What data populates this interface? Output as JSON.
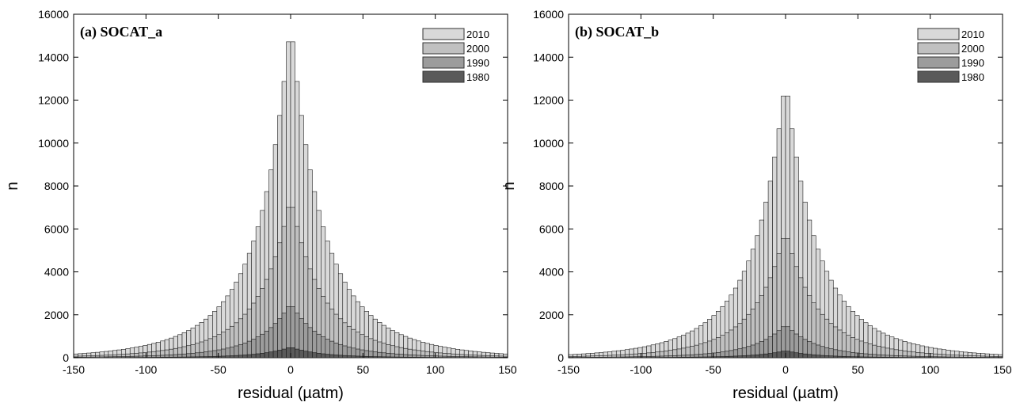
{
  "chart_data": [
    {
      "type": "bar",
      "title": "(a) SOCAT_a",
      "xlabel": "residual (µatm)",
      "ylabel": "n",
      "xlim": [
        -150,
        150
      ],
      "ylim": [
        0,
        16000
      ],
      "xticks": [
        "-150",
        "-100",
        "-50",
        "0",
        "50",
        "100",
        "150"
      ],
      "yticks": [
        "0",
        "2000",
        "4000",
        "6000",
        "8000",
        "10000",
        "12000",
        "14000",
        "16000"
      ],
      "bin_width": 3,
      "legend_position": "top-right",
      "series": [
        {
          "name": "2010",
          "color": "#d9d9d9",
          "peak": 15750,
          "w1": 17,
          "w2": 42
        },
        {
          "name": "2000",
          "color": "#c0c0c0",
          "peak": 7500,
          "w1": 17,
          "w2": 40
        },
        {
          "name": "1990",
          "color": "#9c9c9c",
          "peak": 2550,
          "w1": 17,
          "w2": 40
        },
        {
          "name": "1980",
          "color": "#5a5a5a",
          "peak": 500,
          "w1": 16,
          "w2": 40
        }
      ]
    },
    {
      "type": "bar",
      "title": "(b) SOCAT_b",
      "xlabel": "residual (µatm)",
      "ylabel": "n",
      "xlim": [
        -150,
        150
      ],
      "ylim": [
        0,
        16000
      ],
      "xticks": [
        "-150",
        "-100",
        "-50",
        "0",
        "50",
        "100",
        "150"
      ],
      "yticks": [
        "0",
        "2000",
        "4000",
        "6000",
        "8000",
        "10000",
        "12000",
        "14000",
        "16000"
      ],
      "bin_width": 3,
      "legend_position": "top-right",
      "series": [
        {
          "name": "2010",
          "color": "#d9d9d9",
          "peak": 13050,
          "w1": 17,
          "w2": 42
        },
        {
          "name": "2000",
          "color": "#c0c0c0",
          "peak": 5950,
          "w1": 17,
          "w2": 40
        },
        {
          "name": "1990",
          "color": "#9c9c9c",
          "peak": 1550,
          "w1": 17,
          "w2": 40
        },
        {
          "name": "1980",
          "color": "#5a5a5a",
          "peak": 330,
          "w1": 16,
          "w2": 40
        }
      ]
    }
  ]
}
